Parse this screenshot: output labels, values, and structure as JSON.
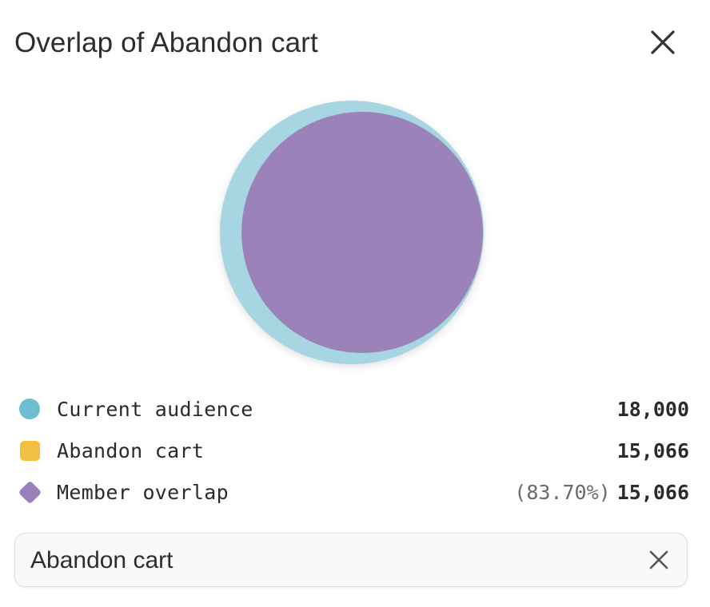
{
  "dialog": {
    "title": "Overlap of Abandon cart",
    "close_icon": "close-icon"
  },
  "colors": {
    "current_audience": "#6dbdd3",
    "abandon_cart": "#f2c040",
    "member_overlap": "#9b7fb8",
    "venn_outer": "#a8d5e2",
    "venn_inner": "#9b82b8"
  },
  "chart_data": {
    "type": "venn",
    "sets": [
      {
        "name": "Current audience",
        "size": 18000
      },
      {
        "name": "Abandon cart",
        "size": 15066
      }
    ],
    "overlap": {
      "name": "Member overlap",
      "size": 15066,
      "percent": "83.70%"
    }
  },
  "legend": {
    "items": [
      {
        "label": "Current audience",
        "value": "18,000",
        "marker": "circle"
      },
      {
        "label": "Abandon cart",
        "value": "15,066",
        "marker": "square"
      },
      {
        "label": "Member overlap",
        "percent": "(83.70%)",
        "value": "15,066",
        "marker": "diamond"
      }
    ]
  },
  "selector": {
    "value": "Abandon cart",
    "clear_icon": "close-icon"
  }
}
